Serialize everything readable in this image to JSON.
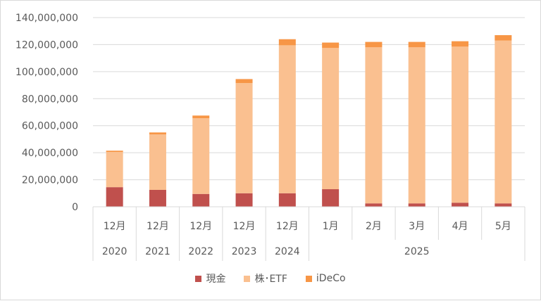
{
  "chart_data": {
    "type": "bar",
    "stacked": true,
    "categories": [
      "12月",
      "12月",
      "12月",
      "12月",
      "12月",
      "1月",
      "2月",
      "3月",
      "4月",
      "5月"
    ],
    "year_groups": [
      {
        "label": "2020",
        "span": 1
      },
      {
        "label": "2021",
        "span": 1
      },
      {
        "label": "2022",
        "span": 1
      },
      {
        "label": "2023",
        "span": 1
      },
      {
        "label": "2024",
        "span": 1
      },
      {
        "label": "2025",
        "span": 5
      }
    ],
    "series": [
      {
        "name": "現金",
        "color": "#c0504d",
        "values": [
          14500000,
          12500000,
          9500000,
          10000000,
          10000000,
          13000000,
          2500000,
          2500000,
          3000000,
          2500000
        ]
      },
      {
        "name": "株･ETF",
        "color": "#fac090",
        "values": [
          26000000,
          41000000,
          56000000,
          81500000,
          109500000,
          104500000,
          115500000,
          115500000,
          115500000,
          120500000
        ]
      },
      {
        "name": "iDeCo",
        "color": "#f79646",
        "values": [
          1000000,
          1500000,
          2000000,
          3000000,
          4500000,
          4000000,
          4000000,
          4000000,
          4000000,
          4000000
        ]
      }
    ],
    "y_ticks": [
      "0",
      "20,000,000",
      "40,000,000",
      "60,000,000",
      "80,000,000",
      "100,000,000",
      "120,000,000",
      "140,000,000"
    ],
    "ylim": [
      0,
      140000000
    ],
    "grid": true,
    "legend_position": "bottom"
  }
}
